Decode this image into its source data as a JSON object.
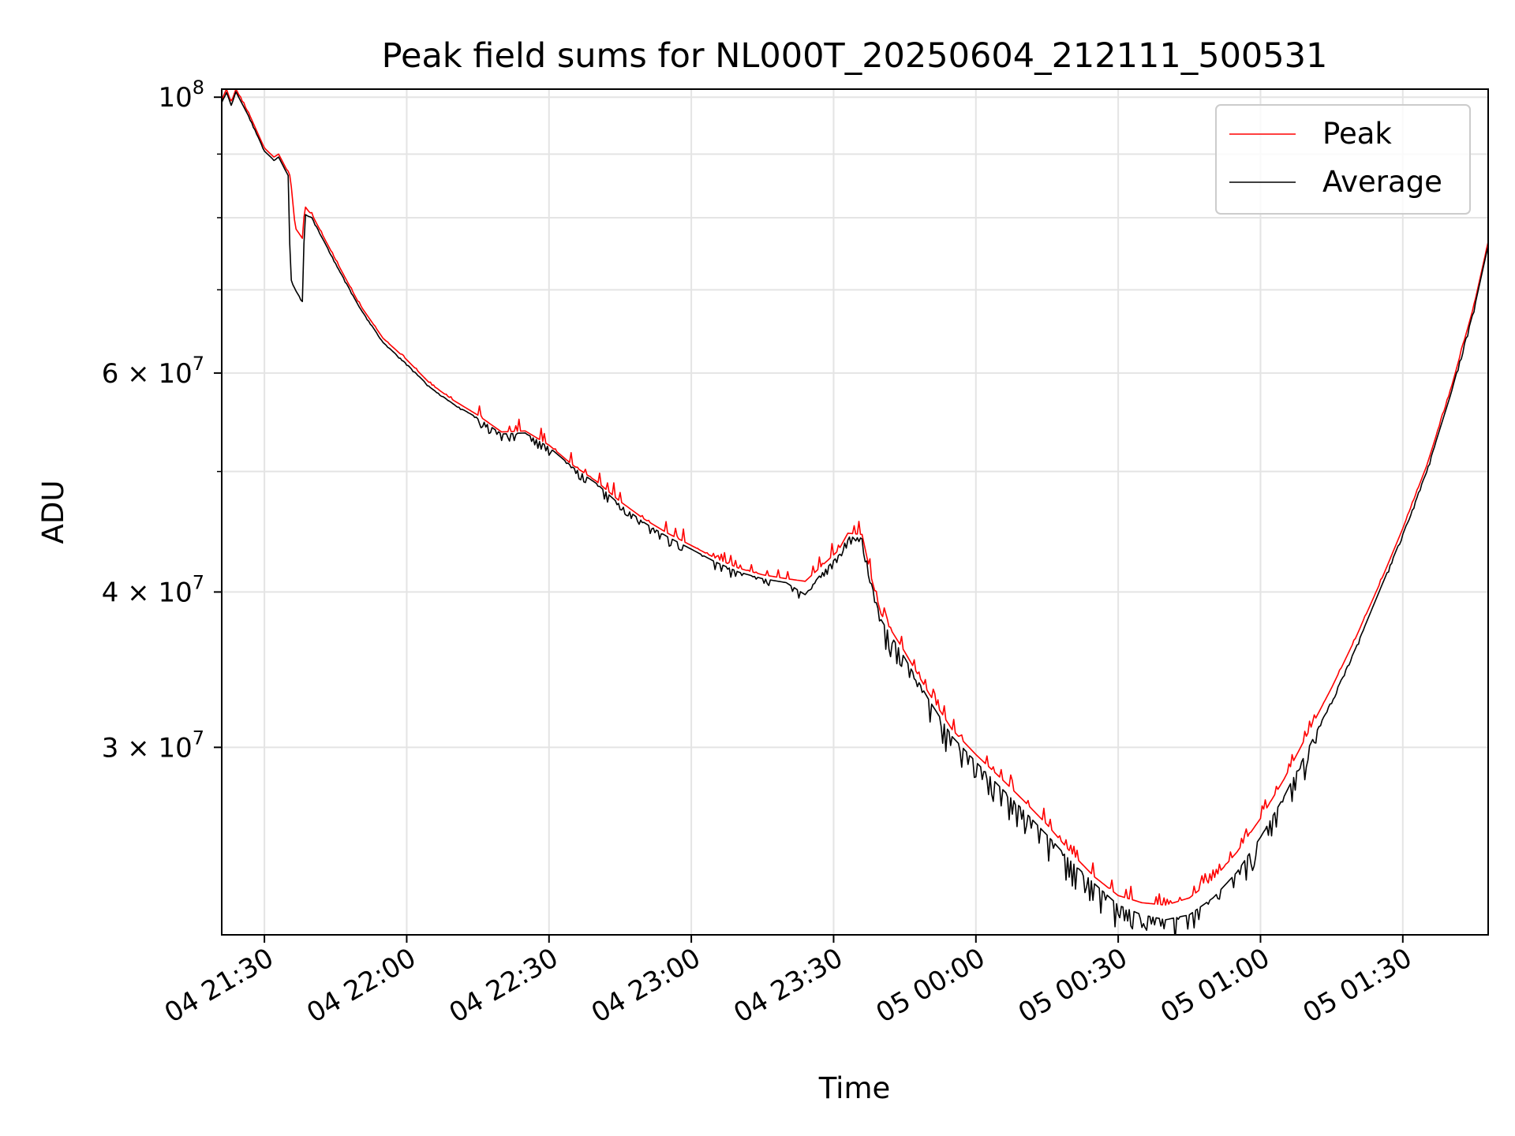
{
  "chart_data": {
    "type": "line",
    "title": "Peak field sums for NL000T_20250604_212111_500531",
    "xlabel": "Time",
    "ylabel": "ADU",
    "yscale": "log",
    "ylim": [
      21200000,
      101500000
    ],
    "xlim": [
      "2025-06-04 21:21",
      "2025-06-05 01:48"
    ],
    "grid": true,
    "legend_position": "top-right",
    "x_ticks": [
      {
        "value": "2025-06-04 21:30",
        "label": "04 21:30"
      },
      {
        "value": "2025-06-04 22:00",
        "label": "04 22:00"
      },
      {
        "value": "2025-06-04 22:30",
        "label": "04 22:30"
      },
      {
        "value": "2025-06-04 23:00",
        "label": "04 23:00"
      },
      {
        "value": "2025-06-04 23:30",
        "label": "04 23:30"
      },
      {
        "value": "2025-06-05 00:00",
        "label": "05 00:00"
      },
      {
        "value": "2025-06-05 00:30",
        "label": "05 00:30"
      },
      {
        "value": "2025-06-05 01:00",
        "label": "05 01:00"
      },
      {
        "value": "2025-06-05 01:30",
        "label": "05 01:30"
      }
    ],
    "y_ticks": [
      {
        "value": 100000000,
        "base": "10",
        "exp": "8"
      },
      {
        "value": 60000000,
        "mant": "6 × 10",
        "exp": "7"
      },
      {
        "value": 40000000,
        "mant": "4 × 10",
        "exp": "7"
      },
      {
        "value": 30000000,
        "mant": "3 × 10",
        "exp": "7"
      }
    ],
    "y_minor_ticks": [
      90000000,
      80000000,
      70000000,
      50000000
    ],
    "series": [
      {
        "name": "Peak",
        "color": "#ff0000",
        "noise_up": 0.025,
        "x": [
          "2025-06-04 21:21",
          "2025-06-04 21:22",
          "2025-06-04 21:23",
          "2025-06-04 21:24",
          "2025-06-04 21:27",
          "2025-06-04 21:30",
          "2025-06-04 21:32",
          "2025-06-04 21:33",
          "2025-06-04 21:35",
          "2025-06-04 21:35:30",
          "2025-06-04 21:36:30",
          "2025-06-04 21:38",
          "2025-06-04 21:38:30",
          "2025-06-04 21:40",
          "2025-06-04 21:45",
          "2025-06-04 21:50",
          "2025-06-04 21:55",
          "2025-06-04 22:00",
          "2025-06-04 22:05",
          "2025-06-04 22:10",
          "2025-06-04 22:15",
          "2025-06-04 22:20",
          "2025-06-04 22:25",
          "2025-06-04 22:30",
          "2025-06-04 22:35",
          "2025-06-04 22:40",
          "2025-06-04 22:45",
          "2025-06-04 22:50",
          "2025-06-04 22:55",
          "2025-06-04 23:00",
          "2025-06-04 23:05",
          "2025-06-04 23:10",
          "2025-06-04 23:15",
          "2025-06-04 23:20",
          "2025-06-04 23:24",
          "2025-06-04 23:27",
          "2025-06-04 23:31",
          "2025-06-04 23:33",
          "2025-06-04 23:36",
          "2025-06-04 23:38",
          "2025-06-04 23:40",
          "2025-06-04 23:45",
          "2025-06-04 23:50",
          "2025-06-04 23:55",
          "2025-06-05 00:00",
          "2025-06-05 00:05",
          "2025-06-05 00:10",
          "2025-06-05 00:15",
          "2025-06-05 00:20",
          "2025-06-05 00:25",
          "2025-06-05 00:30",
          "2025-06-05 00:35",
          "2025-06-05 00:40",
          "2025-06-05 00:45",
          "2025-06-05 00:50",
          "2025-06-05 00:55",
          "2025-06-05 01:00",
          "2025-06-05 01:05",
          "2025-06-05 01:10",
          "2025-06-05 01:15",
          "2025-06-05 01:20",
          "2025-06-05 01:25",
          "2025-06-05 01:30",
          "2025-06-05 01:35",
          "2025-06-05 01:40",
          "2025-06-05 01:45",
          "2025-06-05 01:48"
        ],
        "y": [
          99500000,
          101500000,
          99000000,
          101500000,
          96500000,
          91000000,
          89500000,
          90000000,
          87000000,
          86000000,
          78500000,
          77000000,
          81500000,
          80500000,
          74000000,
          68200000,
          64000000,
          61500000,
          58800000,
          57000000,
          55500000,
          53800000,
          53900000,
          52500000,
          50600000,
          49100000,
          47300000,
          45800000,
          44600000,
          43600000,
          42600000,
          41800000,
          41300000,
          41000000,
          40800000,
          41800000,
          43200000,
          44600000,
          44500000,
          41000000,
          38400000,
          35800000,
          33200000,
          31000000,
          29600000,
          28400000,
          27200000,
          26000000,
          24700000,
          23600000,
          22800000,
          22500000,
          22400000,
          22700000,
          23500000,
          24700000,
          26300000,
          28300000,
          30800000,
          33500000,
          36700000,
          40500000,
          45000000,
          50500000,
          58000000,
          68000000,
          76500000
        ]
      },
      {
        "name": "Average",
        "color": "#000000",
        "noise_down": 0.045,
        "x": [
          "2025-06-04 21:21",
          "2025-06-04 21:22",
          "2025-06-04 21:23",
          "2025-06-04 21:24",
          "2025-06-04 21:27",
          "2025-06-04 21:30",
          "2025-06-04 21:32",
          "2025-06-04 21:33",
          "2025-06-04 21:35",
          "2025-06-04 21:35:30",
          "2025-06-04 21:36:30",
          "2025-06-04 21:38",
          "2025-06-04 21:38:30",
          "2025-06-04 21:40",
          "2025-06-04 21:45",
          "2025-06-04 21:50",
          "2025-06-04 21:55",
          "2025-06-04 22:00",
          "2025-06-04 22:05",
          "2025-06-04 22:10",
          "2025-06-04 22:15",
          "2025-06-04 22:20",
          "2025-06-04 22:25",
          "2025-06-04 22:30",
          "2025-06-04 22:35",
          "2025-06-04 22:40",
          "2025-06-04 22:45",
          "2025-06-04 22:50",
          "2025-06-04 22:55",
          "2025-06-04 23:00",
          "2025-06-04 23:05",
          "2025-06-04 23:10",
          "2025-06-04 23:15",
          "2025-06-04 23:20",
          "2025-06-04 23:24",
          "2025-06-04 23:27",
          "2025-06-04 23:31",
          "2025-06-04 23:33",
          "2025-06-04 23:36",
          "2025-06-04 23:38",
          "2025-06-04 23:40",
          "2025-06-04 23:45",
          "2025-06-04 23:50",
          "2025-06-04 23:55",
          "2025-06-05 00:00",
          "2025-06-05 00:05",
          "2025-06-05 00:10",
          "2025-06-05 00:15",
          "2025-06-05 00:20",
          "2025-06-05 00:25",
          "2025-06-05 00:30",
          "2025-06-05 00:35",
          "2025-06-05 00:40",
          "2025-06-05 00:45",
          "2025-06-05 00:50",
          "2025-06-05 00:55",
          "2025-06-05 01:00",
          "2025-06-05 01:05",
          "2025-06-05 01:10",
          "2025-06-05 01:15",
          "2025-06-05 01:20",
          "2025-06-05 01:25",
          "2025-06-05 01:30",
          "2025-06-05 01:35",
          "2025-06-05 01:40",
          "2025-06-05 01:45",
          "2025-06-05 01:48"
        ],
        "y": [
          99000000,
          101000000,
          98500000,
          101000000,
          96000000,
          90500000,
          89000000,
          89500000,
          86500000,
          71500000,
          70000000,
          68500000,
          80500000,
          80000000,
          73500000,
          67800000,
          63500000,
          61000000,
          58400000,
          56600000,
          55200000,
          53600000,
          53700000,
          52300000,
          50400000,
          48900000,
          47000000,
          45500000,
          44300000,
          43300000,
          42300000,
          41500000,
          41000000,
          40700000,
          39800000,
          41200000,
          42800000,
          44300000,
          44200000,
          40600000,
          38000000,
          35400000,
          32800000,
          30600000,
          29200000,
          27900000,
          26700000,
          25500000,
          24300000,
          23300000,
          22400000,
          22000000,
          21800000,
          22000000,
          22700000,
          23800000,
          25400000,
          27400000,
          29900000,
          32700000,
          36000000,
          40000000,
          44500000,
          50000000,
          57500000,
          67500000,
          76000000
        ]
      }
    ]
  }
}
